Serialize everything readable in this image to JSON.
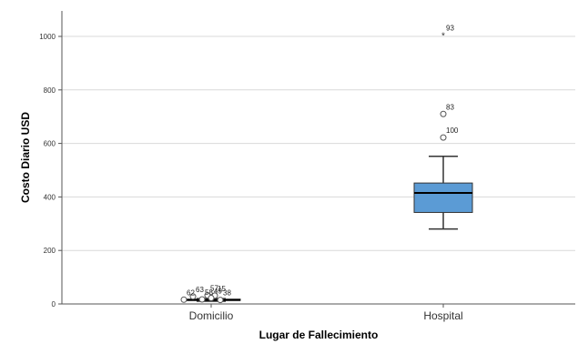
{
  "chart_data": {
    "type": "boxplot",
    "xlabel": "Lugar de Fallecimiento",
    "ylabel": "Costo Diario USD",
    "ylim": [
      0,
      1100
    ],
    "yticks": [
      0,
      200,
      400,
      600,
      800,
      1000
    ],
    "grid": "horizontal",
    "box_color": "#5b9bd5",
    "categories": [
      "Domicilio",
      "Hospital"
    ],
    "boxes": [
      {
        "category": "Domicilio",
        "whisker_low": 10,
        "q1": 13,
        "median": 15,
        "q3": 18,
        "whisker_high": 20,
        "outliers": [
          {
            "label": "63",
            "value": 28,
            "marker": "circle"
          },
          {
            "label": "57",
            "value": 32,
            "marker": "circle"
          },
          {
            "label": "15",
            "value": 31,
            "marker": "circle"
          },
          {
            "label": "49",
            "value": 22,
            "marker": "circle"
          },
          {
            "label": "62",
            "value": 16,
            "marker": "circle"
          },
          {
            "label": "58",
            "value": 17,
            "marker": "circle"
          },
          {
            "label": "38",
            "value": 15,
            "marker": "circle"
          }
        ]
      },
      {
        "category": "Hospital",
        "whisker_low": 280,
        "q1": 342,
        "median": 415,
        "q3": 452,
        "whisker_high": 552,
        "outliers": [
          {
            "label": "100",
            "value": 622,
            "marker": "circle"
          },
          {
            "label": "83",
            "value": 710,
            "marker": "circle"
          },
          {
            "label": "93",
            "value": 1005,
            "marker": "star"
          }
        ]
      }
    ]
  }
}
